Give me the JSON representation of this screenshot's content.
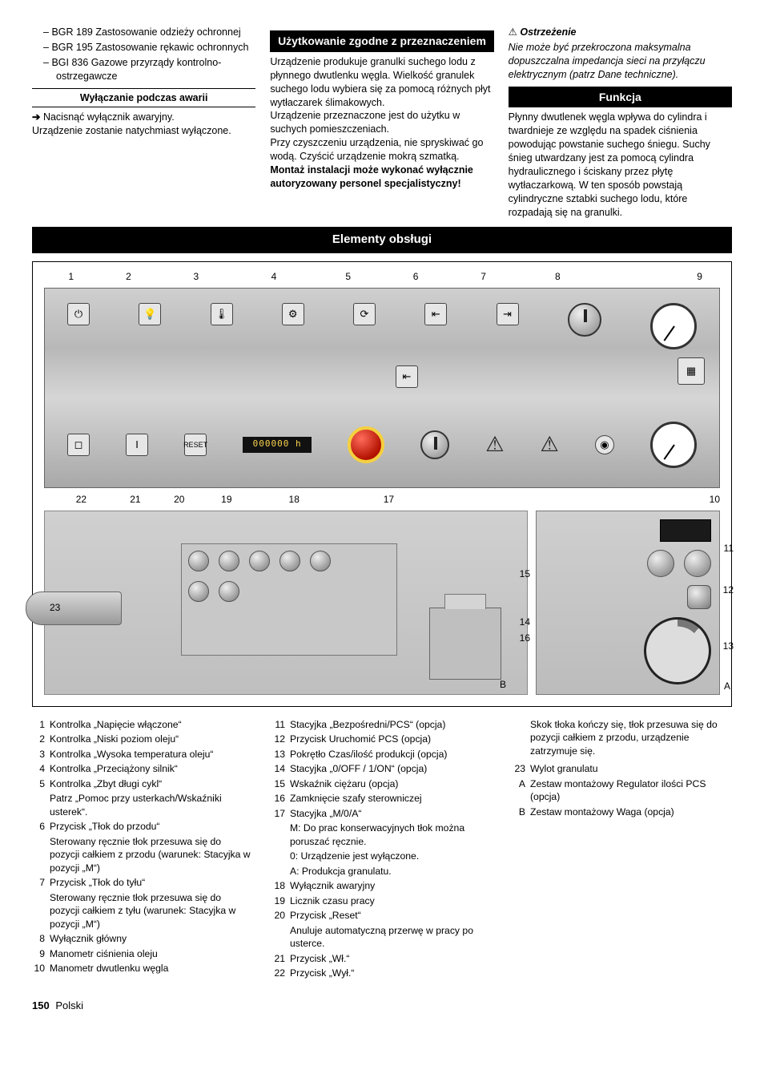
{
  "col1": {
    "bullets": [
      "BGR 189 Zastosowanie odzieży ochronnej",
      "BGR 195 Zastosowanie rękawic ochronnych",
      "BGI 836 Gazowe przyrządy kontrolno-ostrzegawcze"
    ],
    "sub_heading": "Wyłączanie podczas awarii",
    "arrow_text": "Nacisnąć wyłącznik awaryjny.",
    "after_arrow": "Urządzenie zostanie natychmiast wyłączone."
  },
  "col2": {
    "heading": "Użytkowanie zgodne z przeznaczeniem",
    "p1": "Urządzenie produkuje granulki suchego lodu z płynnego dwutlenku węgla. Wielkość granulek suchego lodu wybiera się za pomocą różnych płyt wytłaczarek ślimakowych.",
    "p2": "Urządzenie przeznaczone jest do użytku w suchych pomieszczeniach.",
    "p3": "Przy czyszczeniu urządzenia, nie spryskiwać go wodą. Czyścić urządzenie mokrą szmatką.",
    "p4_bold": "Montaż instalacji może wykonać wyłącznie autoryzowany personel specjalistyczny!"
  },
  "col3": {
    "warn_heading": "Ostrzeżenie",
    "warn_body": "Nie może być przekroczona maksymalna dopuszczalna impedancja sieci na przyłączu elektrycznym (patrz Dane techniczne).",
    "func_heading": "Funkcja",
    "func_body": "Płynny dwutlenek węgla wpływa do cylindra i twardnieje ze względu na spadek ciśnienia powodując powstanie suchego śniegu. Suchy śnieg utwardzany jest za pomocą cylindra hydraulicznego i ściskany przez płytę wytłaczarkową. W ten sposób powstają cylindryczne sztabki suchego lodu, które rozpadają się na granulki."
  },
  "section_bar": "Elementy obsługi",
  "diagram": {
    "top_numbers": [
      "1",
      "2",
      "3",
      "4",
      "5",
      "6",
      "7",
      "8",
      "9"
    ],
    "top_row_left": [
      "22",
      "21",
      "20",
      "19",
      "18",
      "17"
    ],
    "right_side": [
      "10",
      "11",
      "12",
      "13"
    ],
    "mid_left": [
      "23"
    ],
    "mid_right_stack": [
      "15",
      "14",
      "16"
    ],
    "letters": [
      "B",
      "A"
    ],
    "counter_text": "000000 h",
    "icon_glyphs": [
      "⏻",
      "💡",
      "🌡",
      "⚙",
      "⟳",
      "⇤",
      "⇥"
    ],
    "gauge_color": "#ffffff",
    "panel_bg": "#c8c8c8",
    "estop_red": "#b31200",
    "estop_yellow": "#f4d03f"
  },
  "legend": {
    "colA": [
      {
        "n": "1",
        "t": "Kontrolka „Napięcie włączone“"
      },
      {
        "n": "2",
        "t": "Kontrolka „Niski poziom oleju“"
      },
      {
        "n": "3",
        "t": "Kontrolka „Wysoka temperatura oleju“"
      },
      {
        "n": "4",
        "t": "Kontrolka „Przeciążony silnik“"
      },
      {
        "n": "5",
        "t": "Kontrolka „Zbyt długi cykl“",
        "extra": [
          "Patrz „Pomoc przy usterkach/Wskaźniki usterek“."
        ]
      },
      {
        "n": "6",
        "t": "Przycisk „Tłok do przodu“",
        "extra": [
          "Sterowany ręcznie tłok przesuwa się do pozycji całkiem z przodu (warunek: Stacyjka w pozycji „M“)"
        ]
      },
      {
        "n": "7",
        "t": "Przycisk „Tłok do tyłu“",
        "extra": [
          "Sterowany ręcznie tłok przesuwa się do pozycji całkiem z tyłu (warunek: Stacyjka w pozycji „M“)"
        ]
      },
      {
        "n": "8",
        "t": "Wyłącznik główny"
      },
      {
        "n": "9",
        "t": "Manometr ciśnienia oleju"
      },
      {
        "n": "10",
        "t": "Manometr dwutlenku węgla"
      }
    ],
    "colB": [
      {
        "n": "11",
        "t": "Stacyjka „Bezpośredni/PCS“ (opcja)"
      },
      {
        "n": "12",
        "t": "Przycisk Uruchomić PCS (opcja)"
      },
      {
        "n": "13",
        "t": "Pokrętło Czas/ilość produkcji (opcja)"
      },
      {
        "n": "14",
        "t": "Stacyjka „0/OFF / 1/ON“ (opcja)"
      },
      {
        "n": "15",
        "t": "Wskaźnik ciężaru (opcja)"
      },
      {
        "n": "16",
        "t": "Zamknięcie szafy sterowniczej"
      },
      {
        "n": "17",
        "t": "Stacyjka „M/0/A“",
        "extra": [
          "M: Do prac konserwacyjnych tłok można poruszać ręcznie.",
          "0: Urządzenie jest wyłączone.",
          "A: Produkcja granulatu."
        ]
      },
      {
        "n": "18",
        "t": "Wyłącznik awaryjny"
      },
      {
        "n": "19",
        "t": "Licznik czasu pracy"
      },
      {
        "n": "20",
        "t": "Przycisk „Reset“",
        "extra": [
          "Anuluje automatyczną przerwę w pracy po usterce."
        ]
      },
      {
        "n": "21",
        "t": "Przycisk „Wł.“"
      },
      {
        "n": "22",
        "t": "Przycisk „Wył.“"
      }
    ],
    "colC_pre": "Skok tłoka kończy się, tłok przesuwa się do pozycji całkiem z przodu, urządzenie zatrzymuje się.",
    "colC": [
      {
        "n": "23",
        "t": "Wylot granulatu"
      },
      {
        "n": "A",
        "t": "Zestaw montażowy Regulator ilości PCS (opcja)"
      },
      {
        "n": "B",
        "t": "Zestaw montażowy Waga (opcja)"
      }
    ]
  },
  "footer": {
    "page": "150",
    "lang": "Polski"
  },
  "colors": {
    "text": "#000000",
    "invert_bg": "#000000",
    "invert_fg": "#ffffff"
  }
}
